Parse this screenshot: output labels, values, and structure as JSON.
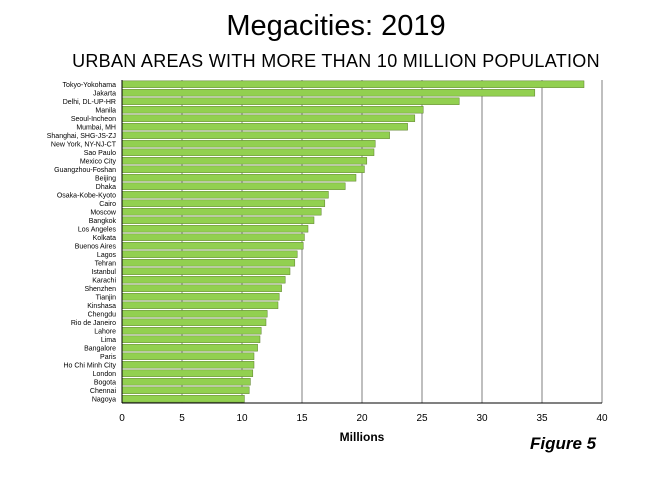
{
  "chart_data": {
    "type": "bar",
    "orientation": "horizontal",
    "title": "Megacities: 2019",
    "subtitle": "URBAN AREAS WITH MORE THAN 10 MILLION POPULATION",
    "xlabel": "Millions",
    "ylabel": "",
    "xlim": [
      0,
      40
    ],
    "xticks": [
      0,
      5,
      10,
      15,
      20,
      25,
      30,
      35,
      40
    ],
    "grid": "vertical",
    "bar_color": "#92d050",
    "bar_edge_color": "#5a7d2a",
    "categories": [
      "Tokyo-Yokohama",
      "Jakarta",
      "Delhi, DL-UP-HR",
      "Manila",
      "Seoul-Incheon",
      "Mumbai, MH",
      "Shanghai, SHG-JS-ZJ",
      "New York, NY-NJ-CT",
      "Sao Paulo",
      "Mexico City",
      "Guangzhou-Foshan",
      "Beijing",
      "Dhaka",
      "Osaka-Kobe-Kyoto",
      "Cairo",
      "Moscow",
      "Bangkok",
      "Los Angeles",
      "Kolkata",
      "Buenos Aires",
      "Lagos",
      "Tehran",
      "Istanbul",
      "Karachi",
      "Shenzhen",
      "Tianjin",
      "Kinshasa",
      "Chengdu",
      "Rio de Janeiro",
      "Lahore",
      "Lima",
      "Bangalore",
      "Paris",
      "Ho Chi Minh City",
      "London",
      "Bogota",
      "Chennai",
      "Nagoya"
    ],
    "values": [
      38.5,
      34.4,
      28.1,
      25.1,
      24.4,
      23.8,
      22.3,
      21.1,
      21.0,
      20.4,
      20.2,
      19.5,
      18.6,
      17.2,
      16.9,
      16.6,
      16.0,
      15.5,
      15.2,
      15.1,
      14.6,
      14.4,
      14.0,
      13.6,
      13.3,
      13.1,
      13.0,
      12.1,
      12.0,
      11.6,
      11.5,
      11.3,
      11.0,
      11.0,
      10.9,
      10.7,
      10.6,
      10.2
    ]
  },
  "figure_label": "Figure 5"
}
